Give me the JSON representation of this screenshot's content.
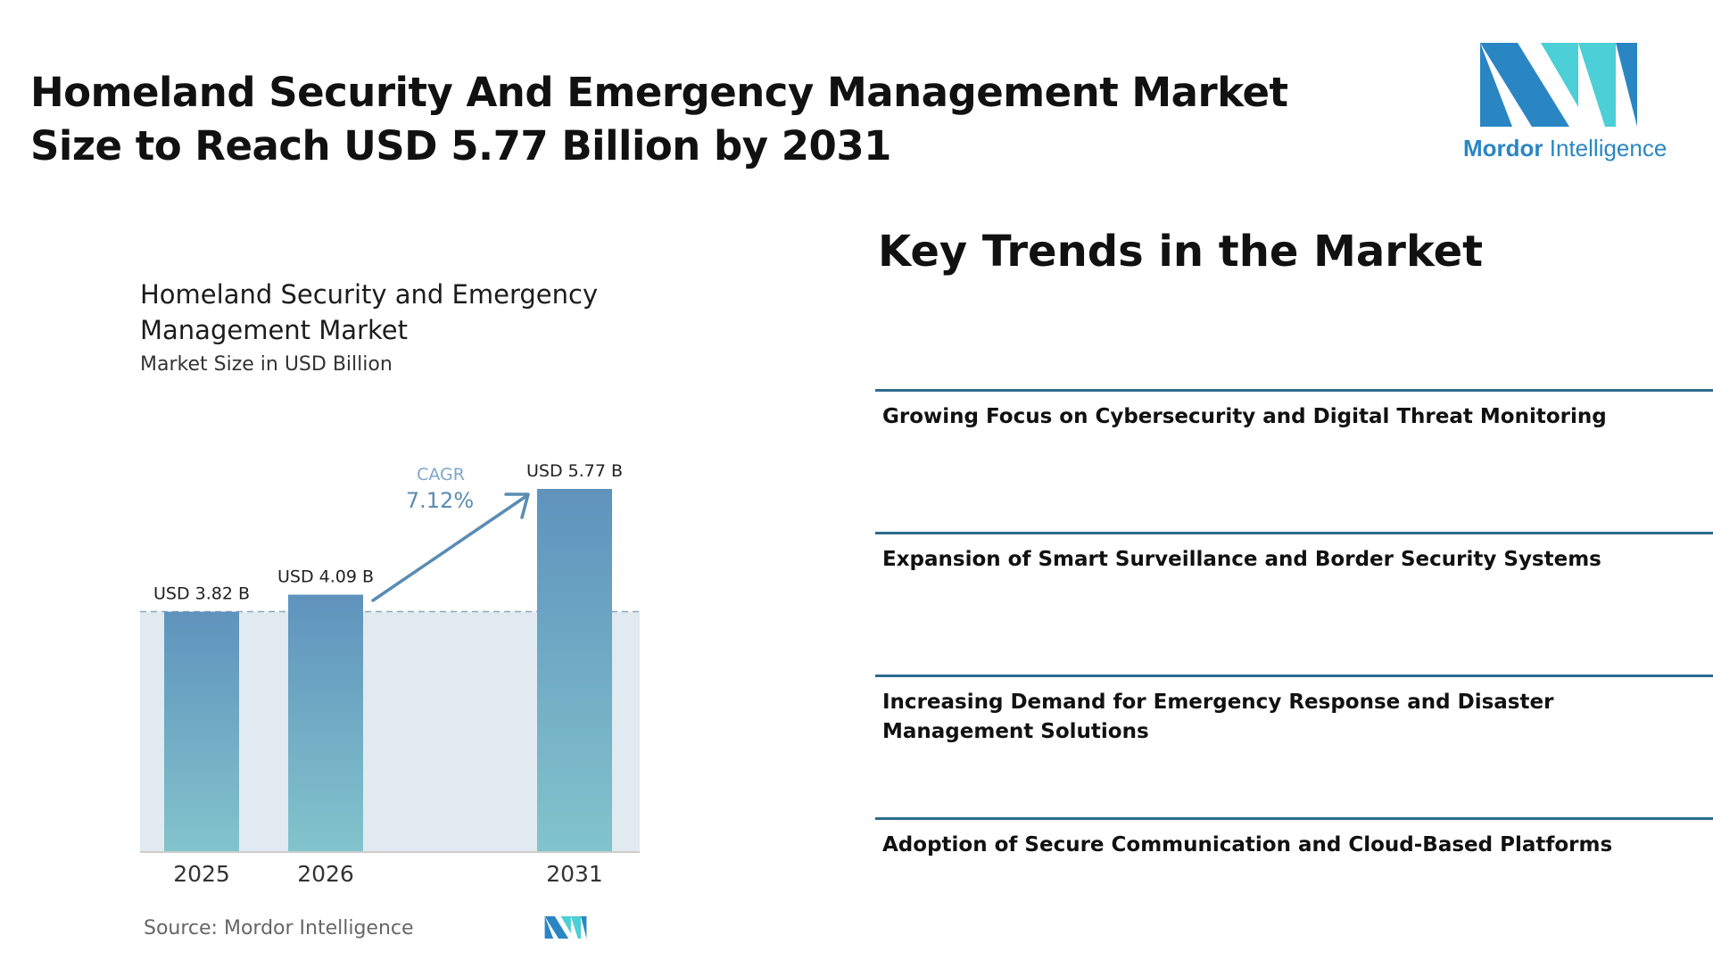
{
  "header": {
    "title": "Homeland Security And Emergency Management Market Size to Reach USD 5.77 Billion by 2031"
  },
  "brand": {
    "name_strong": "Mordor",
    "name_light": " Intelligence",
    "colors": {
      "dark_blue": "#2a86c3",
      "teal": "#4ccfd6"
    }
  },
  "chart_data": {
    "type": "bar",
    "title": "Homeland Security and Emergency Management Market",
    "subtitle": "Market Size in USD Billion",
    "categories": [
      "2025",
      "2026",
      "2031"
    ],
    "values": [
      3.82,
      4.09,
      5.77
    ],
    "data_labels": [
      "USD 3.82 B",
      "USD 4.09 B",
      "USD 5.77 B"
    ],
    "annotation": {
      "label": "CAGR",
      "value": "7.12%"
    },
    "ylim": [
      0,
      5.77
    ],
    "grid": false,
    "colors": {
      "bar_top": "#5f93bd",
      "bar_bottom": "#82c4cc",
      "area": "#e2eaf1",
      "arrow": "#5a8cb4"
    }
  },
  "source": {
    "text": "Source:  Mordor Intelligence"
  },
  "trends": {
    "title": "Key Trends in the Market",
    "items": [
      {
        "label": "Growing Focus on Cybersecurity and Digital Threat Monitoring"
      },
      {
        "label": "Expansion of Smart Surveillance and Border Security Systems"
      },
      {
        "label": "Increasing Demand for Emergency Response and Disaster Management Solutions"
      },
      {
        "label": "Adoption of Secure Communication and Cloud-Based Platforms"
      }
    ]
  }
}
